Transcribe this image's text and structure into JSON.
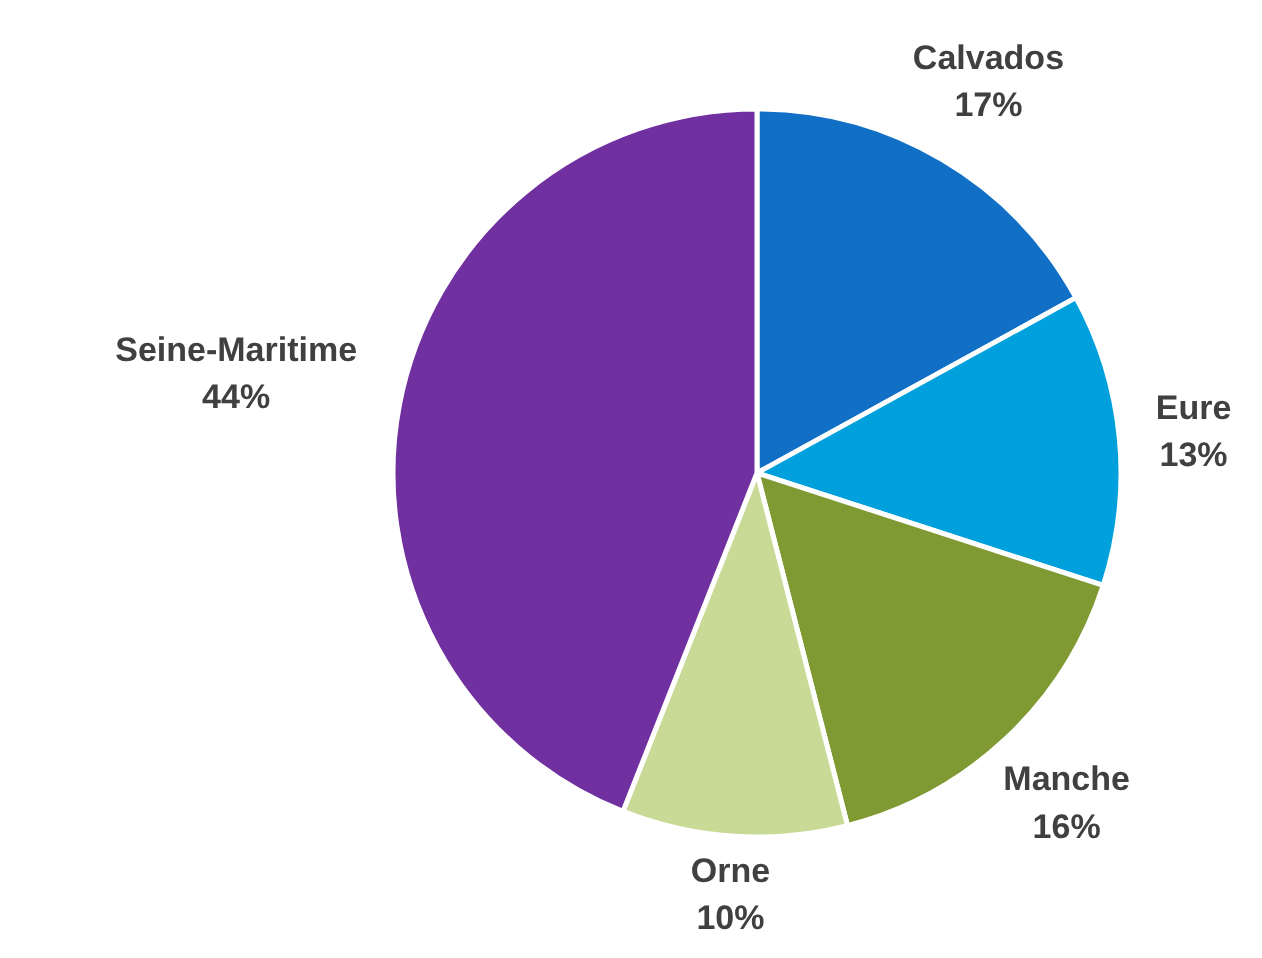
{
  "chart_data": {
    "type": "pie",
    "categories": [
      "Calvados",
      "Eure",
      "Manche",
      "Orne",
      "Seine-Maritime"
    ],
    "values": [
      17,
      13,
      16,
      10,
      44
    ],
    "colors": [
      "#1170c6",
      "#00a0dc",
      "#7f9a33",
      "#c8da95",
      "#7030a0"
    ],
    "value_labels": [
      "17%",
      "13%",
      "16%",
      "10%",
      "44%"
    ]
  }
}
